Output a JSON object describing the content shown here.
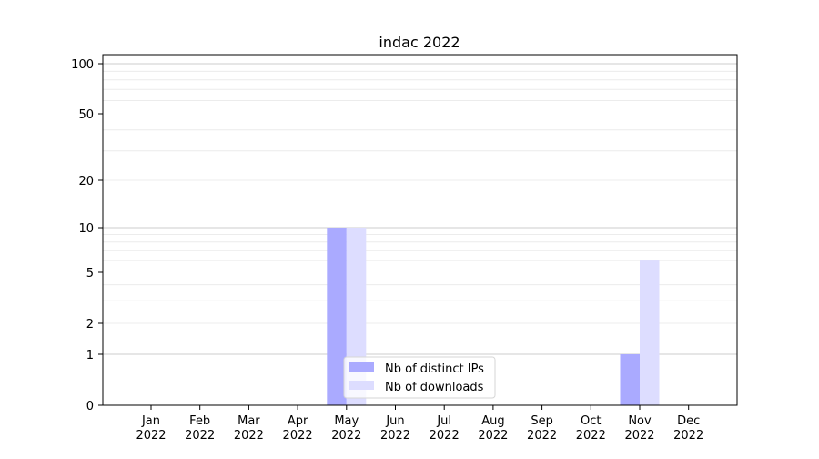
{
  "chart_data": {
    "type": "bar",
    "title": "indac 2022",
    "xlabel": "",
    "ylabel": "",
    "yscale": "symlog",
    "ylim": [
      0,
      110
    ],
    "yticks": [
      0,
      1,
      2,
      5,
      10,
      20,
      50,
      100
    ],
    "categories": [
      "Jan\n2022",
      "Feb\n2022",
      "Mar\n2022",
      "Apr\n2022",
      "May\n2022",
      "Jun\n2022",
      "Jul\n2022",
      "Aug\n2022",
      "Sep\n2022",
      "Oct\n2022",
      "Nov\n2022",
      "Dec\n2022"
    ],
    "series": [
      {
        "name": "Nb of distinct IPs",
        "color": "#aaaaff",
        "values": [
          0,
          0,
          0,
          0,
          10,
          0,
          0,
          0,
          0,
          0,
          1,
          0
        ]
      },
      {
        "name": "Nb of downloads",
        "color": "#ddddff",
        "values": [
          0,
          0,
          0,
          0,
          10,
          0,
          0,
          0,
          0,
          0,
          6,
          0
        ]
      }
    ],
    "grid": true,
    "legend": "lower-center"
  }
}
